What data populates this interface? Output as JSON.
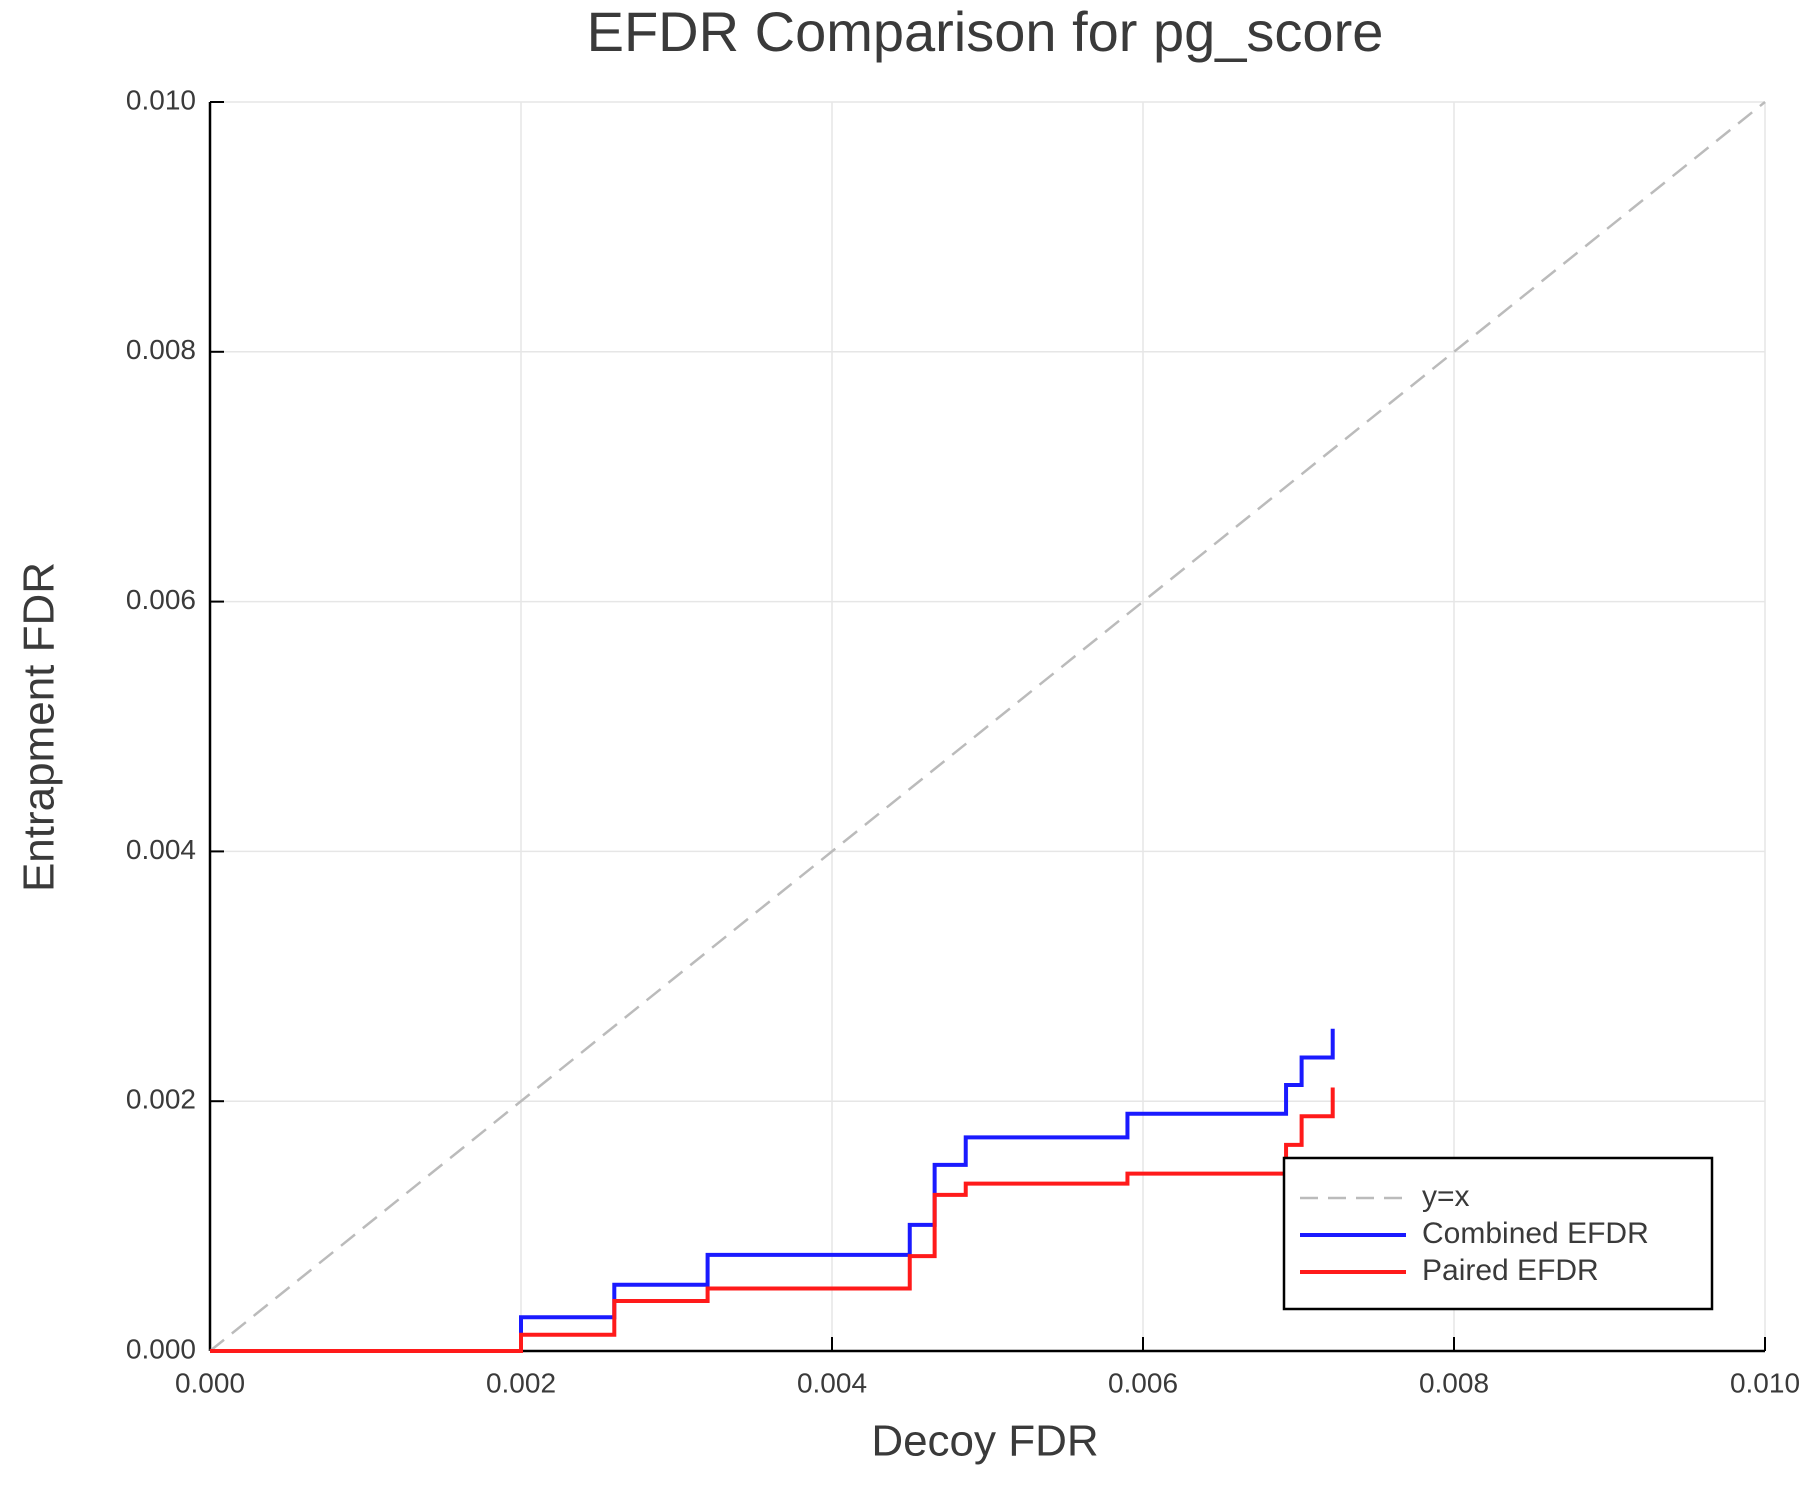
{
  "chart_data": {
    "type": "line",
    "title": "EFDR Comparison for pg_score",
    "x_label": "Decoy FDR",
    "y_label": "Entrapment FDR",
    "xlim": [
      0,
      0.01
    ],
    "ylim": [
      0,
      0.01
    ],
    "xticks": [
      {
        "value": 0,
        "label": "0.000"
      },
      {
        "value": 0.002,
        "label": "0.002"
      },
      {
        "value": 0.004,
        "label": "0.004"
      },
      {
        "value": 0.006,
        "label": "0.006"
      },
      {
        "value": 0.008,
        "label": "0.008"
      },
      {
        "value": 0.01,
        "label": "0.010"
      }
    ],
    "yticks": [
      {
        "value": 0,
        "label": "0.000"
      },
      {
        "value": 0.002,
        "label": "0.002"
      },
      {
        "value": 0.004,
        "label": "0.004"
      },
      {
        "value": 0.006,
        "label": "0.006"
      },
      {
        "value": 0.008,
        "label": "0.008"
      },
      {
        "value": 0.01,
        "label": "0.010"
      }
    ],
    "grid": true,
    "legend": "lower right",
    "series": [
      {
        "name": "y=x",
        "color": "#bbbbbb",
        "dashed": true,
        "x": [
          0,
          0.01
        ],
        "values": [
          0,
          0.01
        ]
      },
      {
        "name": "Combined EFDR",
        "color": "#1a1aff",
        "x": [
          0,
          0.002,
          0.002,
          0.0026,
          0.0026,
          0.0032,
          0.0032,
          0.0045,
          0.0045,
          0.00466,
          0.00466,
          0.00486,
          0.00486,
          0.0059,
          0.0059,
          0.00692,
          0.00692,
          0.00702,
          0.00702,
          0.00722,
          0.00722
        ],
        "values": [
          0,
          0,
          0.00027,
          0.00027,
          0.00053,
          0.00053,
          0.00077,
          0.00077,
          0.00101,
          0.00101,
          0.00149,
          0.00149,
          0.00171,
          0.00171,
          0.0019,
          0.0019,
          0.00213,
          0.00213,
          0.00235,
          0.00235,
          0.00258
        ]
      },
      {
        "name": "Paired EFDR",
        "color": "#ff1a1a",
        "x": [
          0,
          0.002,
          0.002,
          0.0026,
          0.0026,
          0.0032,
          0.0032,
          0.0045,
          0.0045,
          0.00466,
          0.00466,
          0.00486,
          0.00486,
          0.0059,
          0.0059,
          0.00692,
          0.00692,
          0.00702,
          0.00702,
          0.00722,
          0.00722
        ],
        "values": [
          0,
          0,
          0.00013,
          0.00013,
          0.0004,
          0.0004,
          0.0005,
          0.0005,
          0.00076,
          0.00076,
          0.00125,
          0.00125,
          0.00134,
          0.00134,
          0.00142,
          0.00142,
          0.00165,
          0.00165,
          0.00188,
          0.00188,
          0.00211
        ]
      }
    ]
  }
}
